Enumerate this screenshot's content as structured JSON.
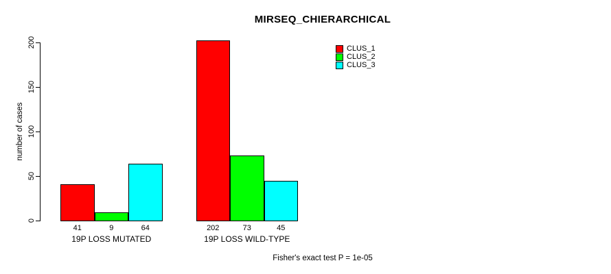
{
  "chart_data": {
    "type": "bar",
    "title": "MIRSEQ_CHIERARCHICAL",
    "xlabel": "",
    "ylabel": "number of cases",
    "ylim": [
      0,
      200
    ],
    "yticks": [
      0,
      50,
      100,
      150,
      200
    ],
    "grid": false,
    "legend_position": "top-right",
    "categories": [
      "19P LOSS MUTATED",
      "19P LOSS WILD-TYPE"
    ],
    "series": [
      {
        "name": "CLUS_1",
        "color": "#ff0000",
        "values": [
          41,
          202
        ]
      },
      {
        "name": "CLUS_2",
        "color": "#00ff00",
        "values": [
          9,
          73
        ]
      },
      {
        "name": "CLUS_3",
        "color": "#00ffff",
        "values": [
          64,
          45
        ]
      }
    ],
    "bar_value_labels": [
      [
        41,
        9,
        64
      ],
      [
        202,
        73,
        45
      ]
    ],
    "annotation": "Fisher's exact test P = 1e-05"
  },
  "colors": {
    "foreground": "#000000",
    "background": "#ffffff"
  }
}
